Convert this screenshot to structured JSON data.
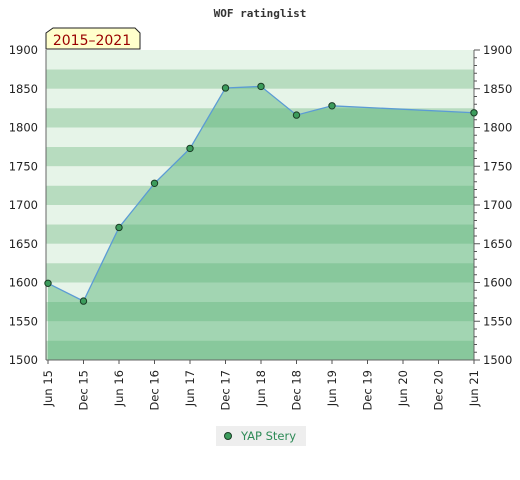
{
  "colors": {
    "series_line": "#5b9bd5",
    "series_fill": "#4fb071",
    "marker_fill": "#3c9c5c",
    "marker_stroke": "#1a3d25",
    "band_light": "#e6f4e8",
    "band_dark": "#b7dcbf",
    "badge_bg": "#ffffcc",
    "badge_text": "#990000",
    "legend_text": "#2e8b57",
    "legend_bg": "#eeeeee"
  },
  "chart_data": {
    "type": "area",
    "title": "WOF ratinglist",
    "badge": "2015–2021",
    "x_ticks": [
      "Jun 15",
      "Dec 15",
      "Jun 16",
      "Dec 16",
      "Jun 17",
      "Dec 17",
      "Jun 18",
      "Dec 18",
      "Jun 19",
      "Dec 19",
      "Jun 20",
      "Dec 20",
      "Jun 21"
    ],
    "y_ticks": [
      1500,
      1550,
      1600,
      1650,
      1700,
      1750,
      1800,
      1850,
      1900
    ],
    "ylim": [
      1500,
      1900
    ],
    "series": [
      {
        "name": "YAP Stery",
        "x": [
          "Jun 15",
          "Dec 15",
          "Jun 16",
          "Dec 16",
          "Jun 17",
          "Dec 17",
          "Jun 18",
          "Dec 18",
          "Jun 19",
          "Jun 21"
        ],
        "values": [
          1599,
          1576,
          1671,
          1728,
          1773,
          1851,
          1853,
          1816,
          1828,
          1819
        ]
      }
    ],
    "legend": "bottom-center",
    "y_axis_both_sides": true
  }
}
